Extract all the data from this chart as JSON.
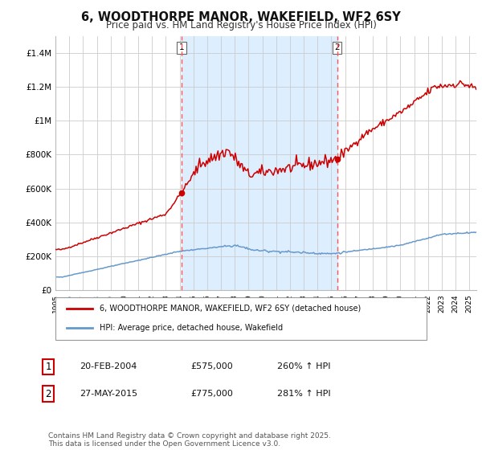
{
  "title": "6, WOODTHORPE MANOR, WAKEFIELD, WF2 6SY",
  "subtitle": "Price paid vs. HM Land Registry's House Price Index (HPI)",
  "title_fontsize": 10.5,
  "subtitle_fontsize": 8.5,
  "background_color": "#ffffff",
  "plot_bg_color": "#ffffff",
  "grid_color": "#cccccc",
  "shade_color": "#ddeeff",
  "red_line_color": "#cc0000",
  "blue_line_color": "#6699cc",
  "dashed_color": "#ff5555",
  "marker_color": "#cc0000",
  "ylim": [
    0,
    1500000
  ],
  "yticks": [
    0,
    200000,
    400000,
    600000,
    800000,
    1000000,
    1200000,
    1400000
  ],
  "ytick_labels": [
    "£0",
    "£200K",
    "£400K",
    "£600K",
    "£800K",
    "£1M",
    "£1.2M",
    "£1.4M"
  ],
  "sale1_date": 2004.13,
  "sale1_price": 575000,
  "sale1_label": "1",
  "sale2_date": 2015.41,
  "sale2_price": 775000,
  "sale2_label": "2",
  "legend_red": "6, WOODTHORPE MANOR, WAKEFIELD, WF2 6SY (detached house)",
  "legend_blue": "HPI: Average price, detached house, Wakefield",
  "table_rows": [
    [
      "1",
      "20-FEB-2004",
      "£575,000",
      "260% ↑ HPI"
    ],
    [
      "2",
      "27-MAY-2015",
      "£775,000",
      "281% ↑ HPI"
    ]
  ],
  "footer": "Contains HM Land Registry data © Crown copyright and database right 2025.\nThis data is licensed under the Open Government Licence v3.0.",
  "footer_fontsize": 6.5
}
